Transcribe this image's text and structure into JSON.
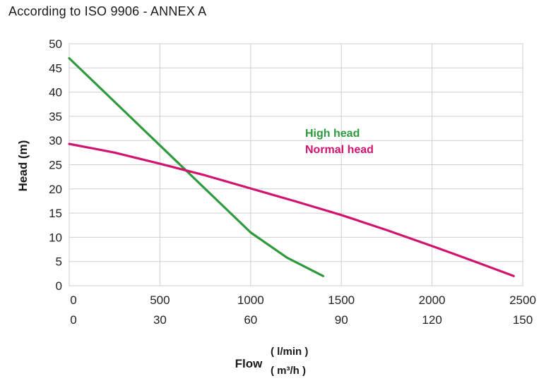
{
  "chart_data": {
    "type": "line",
    "title": "According to ISO 9906 - ANNEX A",
    "ylabel": "Head (m)",
    "xlabel": "Flow",
    "x_units": [
      "( l/min )",
      "( m³/h )"
    ],
    "ylim": [
      0,
      50
    ],
    "xlim": [
      0,
      2500
    ],
    "y_ticks": [
      "0",
      "5",
      "10",
      "15",
      "20",
      "25",
      "30",
      "35",
      "40",
      "45",
      "50"
    ],
    "x_ticks_primary": [
      "0",
      "500",
      "1000",
      "1500",
      "2000",
      "2500"
    ],
    "x_ticks_secondary": [
      "0",
      "30",
      "60",
      "90",
      "120",
      "150"
    ],
    "grid": true,
    "legend": "center, inside plot",
    "series": [
      {
        "name": "High head",
        "color": "#2e9a3d",
        "x": [
          0,
          200,
          400,
          600,
          800,
          1000,
          1200,
          1400
        ],
        "y": [
          47,
          39.8,
          32.6,
          25.4,
          18.2,
          11.0,
          5.8,
          2
        ]
      },
      {
        "name": "Normal head",
        "color": "#d0146f",
        "x": [
          0,
          250,
          500,
          750,
          1000,
          1250,
          1500,
          1750,
          2000,
          2250,
          2450
        ],
        "y": [
          29.3,
          27.5,
          25.2,
          22.8,
          20.1,
          17.4,
          14.6,
          11.5,
          8.2,
          4.8,
          2
        ]
      }
    ]
  }
}
